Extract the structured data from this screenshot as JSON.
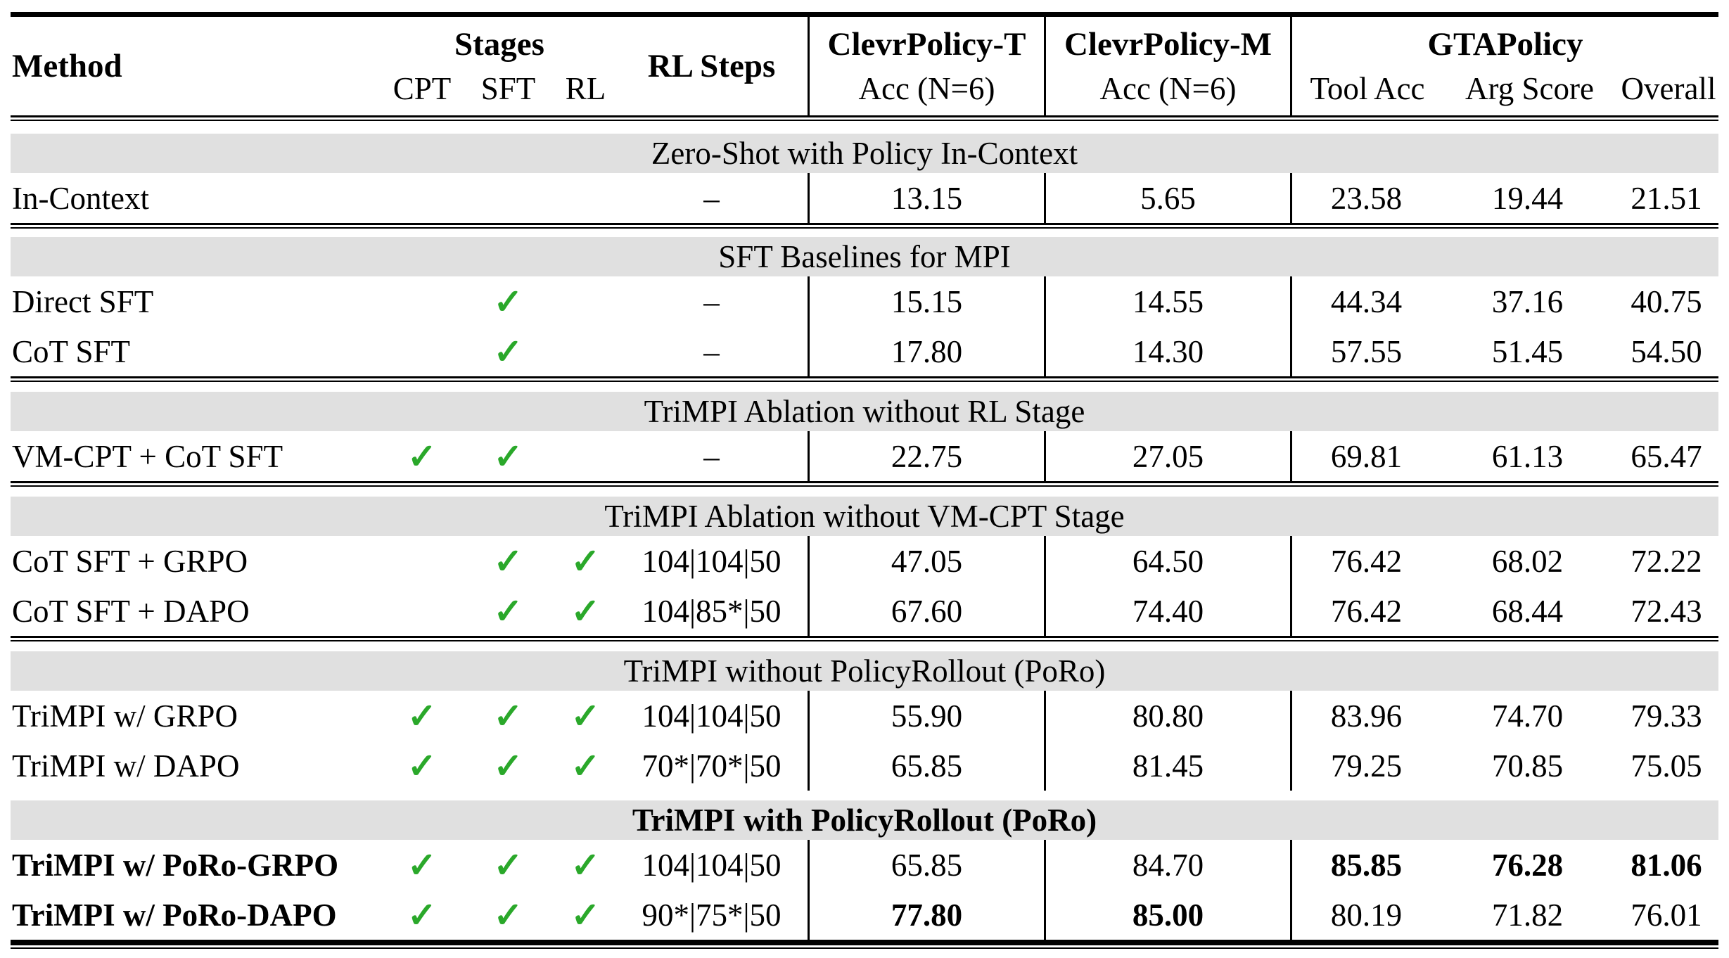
{
  "colors": {
    "check_green": "#2aa82a",
    "banner_gray": "#e0e0e0",
    "rule_black": "#000000"
  },
  "glyphs": {
    "check": "✓",
    "dash": "–"
  },
  "header": {
    "method": "Method",
    "stages_title": "Stages",
    "stage_cols": [
      "CPT",
      "SFT",
      "RL"
    ],
    "rl_steps": "RL Steps",
    "clevr_t_title": "ClevrPolicy-T",
    "clevr_t_sub": "Acc (N=6)",
    "clevr_m_title": "ClevrPolicy-M",
    "clevr_m_sub": "Acc (N=6)",
    "gta_title": "GTAPolicy",
    "gta_subs": [
      "Tool Acc",
      "Arg Score",
      "Overall"
    ]
  },
  "sections": [
    {
      "banner": "Zero-Shot with Policy In-Context",
      "banner_bold": false,
      "rule_after": true,
      "rows": [
        {
          "method": {
            "text": "In-Context",
            "bold": false
          },
          "stages": [
            false,
            false,
            false
          ],
          "rl_steps": "–",
          "values": [
            {
              "text": "13.15",
              "bold": false
            },
            {
              "text": "5.65",
              "bold": false
            },
            {
              "text": "23.58",
              "bold": false
            },
            {
              "text": "19.44",
              "bold": false
            },
            {
              "text": "21.51",
              "bold": false
            }
          ]
        }
      ]
    },
    {
      "banner": "SFT Baselines for MPI",
      "banner_bold": false,
      "rule_after": true,
      "rows": [
        {
          "method": {
            "text": "Direct SFT",
            "bold": false
          },
          "stages": [
            false,
            true,
            false
          ],
          "rl_steps": "–",
          "values": [
            {
              "text": "15.15",
              "bold": false
            },
            {
              "text": "14.55",
              "bold": false
            },
            {
              "text": "44.34",
              "bold": false
            },
            {
              "text": "37.16",
              "bold": false
            },
            {
              "text": "40.75",
              "bold": false
            }
          ]
        },
        {
          "method": {
            "text": "CoT SFT",
            "bold": false
          },
          "stages": [
            false,
            true,
            false
          ],
          "rl_steps": "–",
          "values": [
            {
              "text": "17.80",
              "bold": false
            },
            {
              "text": "14.30",
              "bold": false
            },
            {
              "text": "57.55",
              "bold": false
            },
            {
              "text": "51.45",
              "bold": false
            },
            {
              "text": "54.50",
              "bold": false
            }
          ]
        }
      ]
    },
    {
      "banner": "TriMPI Ablation without RL Stage",
      "banner_bold": false,
      "rule_after": true,
      "rows": [
        {
          "method": {
            "text": "VM-CPT + CoT SFT",
            "bold": false
          },
          "stages": [
            true,
            true,
            false
          ],
          "rl_steps": "–",
          "values": [
            {
              "text": "22.75",
              "bold": false
            },
            {
              "text": "27.05",
              "bold": false
            },
            {
              "text": "69.81",
              "bold": false
            },
            {
              "text": "61.13",
              "bold": false
            },
            {
              "text": "65.47",
              "bold": false
            }
          ]
        }
      ]
    },
    {
      "banner": "TriMPI Ablation without VM-CPT Stage",
      "banner_bold": false,
      "rule_after": true,
      "rows": [
        {
          "method": {
            "text": "CoT SFT + GRPO",
            "bold": false
          },
          "stages": [
            false,
            true,
            true
          ],
          "rl_steps": "104|104|50",
          "values": [
            {
              "text": "47.05",
              "bold": false
            },
            {
              "text": "64.50",
              "bold": false
            },
            {
              "text": "76.42",
              "bold": false
            },
            {
              "text": "68.02",
              "bold": false
            },
            {
              "text": "72.22",
              "bold": false
            }
          ]
        },
        {
          "method": {
            "text": "CoT SFT + DAPO",
            "bold": false
          },
          "stages": [
            false,
            true,
            true
          ],
          "rl_steps": "104|85*|50",
          "values": [
            {
              "text": "67.60",
              "bold": false
            },
            {
              "text": "74.40",
              "bold": false
            },
            {
              "text": "76.42",
              "bold": false
            },
            {
              "text": "68.44",
              "bold": false
            },
            {
              "text": "72.43",
              "bold": false
            }
          ]
        }
      ]
    },
    {
      "banner": "TriMPI without PolicyRollout (PoRo)",
      "banner_bold": false,
      "rule_after": false,
      "rows": [
        {
          "method": {
            "text": "TriMPI w/ GRPO",
            "bold": false
          },
          "stages": [
            true,
            true,
            true
          ],
          "rl_steps": "104|104|50",
          "values": [
            {
              "text": "55.90",
              "bold": false
            },
            {
              "text": "80.80",
              "bold": false
            },
            {
              "text": "83.96",
              "bold": false
            },
            {
              "text": "74.70",
              "bold": false
            },
            {
              "text": "79.33",
              "bold": false
            }
          ]
        },
        {
          "method": {
            "text": "TriMPI w/ DAPO",
            "bold": false
          },
          "stages": [
            true,
            true,
            true
          ],
          "rl_steps": "70*|70*|50",
          "values": [
            {
              "text": "65.85",
              "bold": false
            },
            {
              "text": "81.45",
              "bold": false
            },
            {
              "text": "79.25",
              "bold": false
            },
            {
              "text": "70.85",
              "bold": false
            },
            {
              "text": "75.05",
              "bold": false
            }
          ]
        }
      ]
    },
    {
      "banner": "TriMPI with PolicyRollout (PoRo)",
      "banner_bold": true,
      "rule_after": false,
      "rows": [
        {
          "method": {
            "text": "TriMPI w/ PoRo-GRPO",
            "bold": true
          },
          "stages": [
            true,
            true,
            true
          ],
          "rl_steps": "104|104|50",
          "values": [
            {
              "text": "65.85",
              "bold": false
            },
            {
              "text": "84.70",
              "bold": false
            },
            {
              "text": "85.85",
              "bold": true
            },
            {
              "text": "76.28",
              "bold": true
            },
            {
              "text": "81.06",
              "bold": true
            }
          ]
        },
        {
          "method": {
            "text": "TriMPI w/ PoRo-DAPO",
            "bold": true
          },
          "stages": [
            true,
            true,
            true
          ],
          "rl_steps": "90*|75*|50",
          "values": [
            {
              "text": "77.80",
              "bold": true
            },
            {
              "text": "85.00",
              "bold": true
            },
            {
              "text": "80.19",
              "bold": false
            },
            {
              "text": "71.82",
              "bold": false
            },
            {
              "text": "76.01",
              "bold": false
            }
          ]
        }
      ]
    }
  ]
}
